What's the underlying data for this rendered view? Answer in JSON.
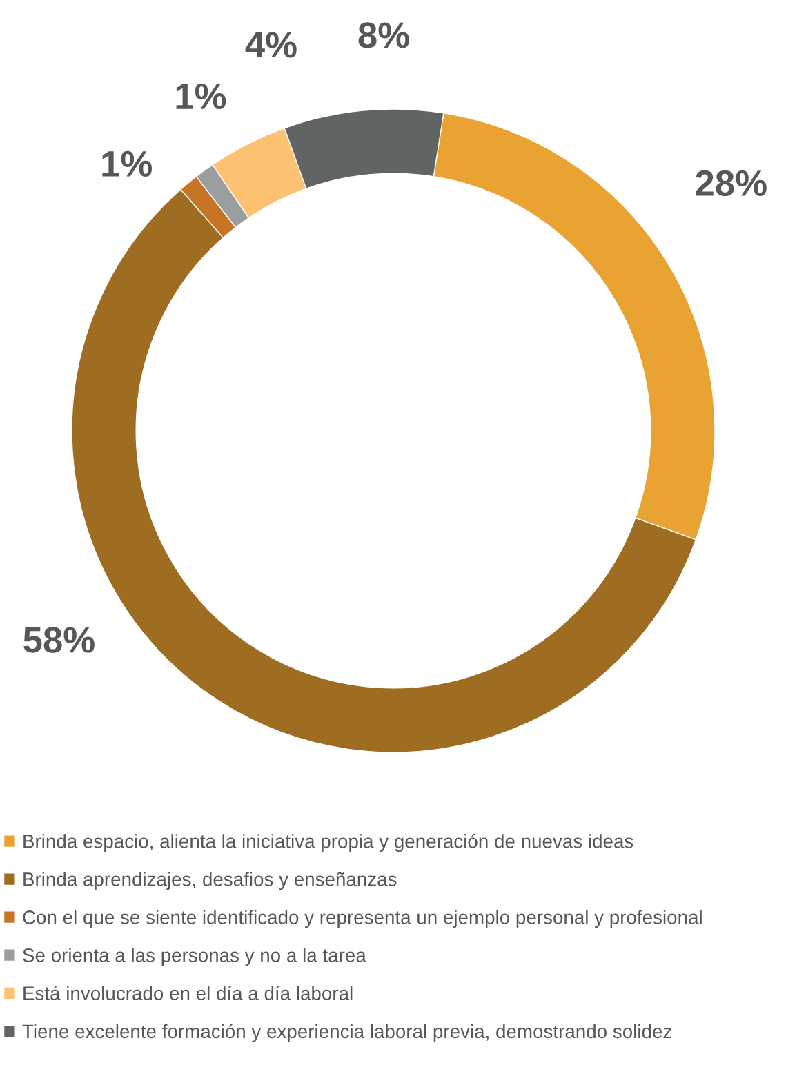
{
  "chart_data": {
    "type": "donut",
    "categories": [
      "Brinda espacio, alienta la iniciativa propia y generación de nuevas ideas",
      "Brinda aprendizajes, desafios y enseñanzas",
      "Con el que se siente identificado y representa un ejemplo personal y profesional",
      "Se orienta a las personas y no a la tarea",
      "Está involucrado en el día a día laboral",
      "Tiene excelente formación y experiencia laboral previa, demostrando solidez"
    ],
    "values": [
      28,
      58,
      1,
      1,
      4,
      8
    ],
    "colors": [
      "#e8a333",
      "#9e6d22",
      "#c87427",
      "#9b9e9f",
      "#fdc173",
      "#616465"
    ],
    "value_labels": [
      "28%",
      "58%",
      "1%",
      "1%",
      "4%",
      "8%"
    ],
    "legend": "bottom"
  }
}
